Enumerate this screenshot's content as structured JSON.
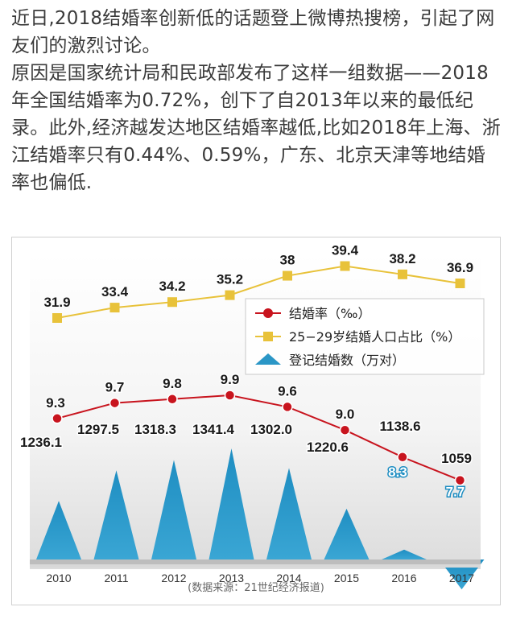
{
  "article": {
    "paragraph_1": "近日,2018结婚率创新低的话题登上微博热搜榜，引起了网友们的激烈讨论。",
    "paragraph_2": "原因是国家统计局和民政部发布了这样一组数据——2018年全国结婚率为0.72%，创下了自2013年以来的最低纪录。此外,经济越发达地区结婚率越低,比如2018年上海、浙江结婚率只有0.44%、0.59%，广东、北京天津等地结婚率也偏低."
  },
  "figure": {
    "source_note": "(数据来源：21世纪经济报道)"
  },
  "chart_data": {
    "type": "line",
    "categories": [
      "2010",
      "2011",
      "2012",
      "2013",
      "2014",
      "2015",
      "2016",
      "2017"
    ],
    "series": [
      {
        "name": "结婚率（‰）",
        "kind": "line",
        "color": "#c8141e",
        "values": [
          9.3,
          9.7,
          9.8,
          9.9,
          9.6,
          9.0,
          8.3,
          7.7
        ],
        "labels": [
          "9.3",
          "9.7",
          "9.8",
          "9.9",
          "9.6",
          "9.0",
          "8.3",
          "7.7"
        ]
      },
      {
        "name": "25−29岁结婚人口占比（%）",
        "kind": "line",
        "color": "#e8c23a",
        "values": [
          31.9,
          33.4,
          34.2,
          35.2,
          38,
          39.4,
          38.2,
          36.9
        ],
        "labels": [
          "31.9",
          "33.4",
          "34.2",
          "35.2",
          "38",
          "39.4",
          "38.2",
          "36.9"
        ]
      },
      {
        "name": "登记结婚数（万对）",
        "kind": "area",
        "color": "#2a96c6",
        "values": [
          1236.1,
          1297.5,
          1318.3,
          1341.4,
          1302.0,
          1220.6,
          1138.6,
          1059
        ],
        "labels": [
          "1236.1",
          "1297.5",
          "1318.3",
          "1341.4",
          "1302.0",
          "1220.6",
          "1138.6",
          "1059"
        ]
      }
    ],
    "legend_position": "center-right",
    "grid": false
  }
}
